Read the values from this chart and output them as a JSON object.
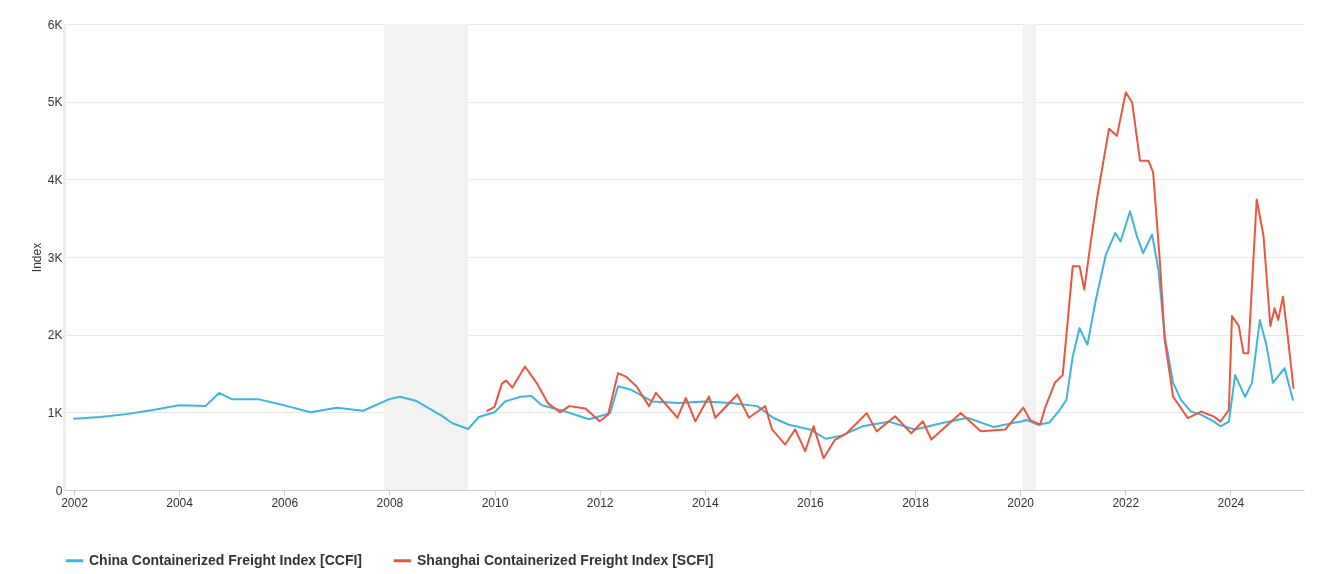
{
  "chart_data": {
    "type": "line",
    "ylabel": "Index",
    "xlim": [
      2001.81,
      2025.4
    ],
    "xticks": [
      2002,
      2004,
      2006,
      2008,
      2010,
      2012,
      2014,
      2016,
      2018,
      2020,
      2022,
      2024
    ],
    "ylim": [
      0,
      6000
    ],
    "yticks": [
      0,
      {
        "value": 1000,
        "label": "1K"
      },
      {
        "value": 2000,
        "label": "2K"
      },
      {
        "value": 3000,
        "label": "3K"
      },
      {
        "value": 4000,
        "label": "4K"
      },
      {
        "value": 5000,
        "label": "5K"
      },
      {
        "value": 6000,
        "label": "6K"
      }
    ],
    "grid": "y",
    "legend": "bottom",
    "line_style": "solid",
    "bands": [
      {
        "axis": "x",
        "from": 2007.9,
        "to": 2009.5,
        "color": "#f2f2f2"
      },
      {
        "axis": "x",
        "from": 2020.05,
        "to": 2020.3,
        "color": "#f2f2f2"
      }
    ],
    "series": [
      {
        "name": "China Containerized Freight Index [CCFI]",
        "color": "#41b4de",
        "x": [
          2002.0,
          2002.5,
          2003.0,
          2003.5,
          2004.0,
          2004.5,
          2004.76,
          2005.0,
          2005.5,
          2006.0,
          2006.5,
          2007.0,
          2007.5,
          2008.0,
          2008.2,
          2008.5,
          2009.0,
          2009.2,
          2009.5,
          2009.7,
          2010.0,
          2010.2,
          2010.5,
          2010.7,
          2010.9,
          2011.3,
          2011.8,
          2012.0,
          2012.2,
          2012.35,
          2012.6,
          2013.0,
          2013.5,
          2014.0,
          2014.5,
          2015.0,
          2015.3,
          2015.6,
          2016.0,
          2016.3,
          2016.6,
          2017.0,
          2017.5,
          2018.0,
          2018.5,
          2019.0,
          2019.5,
          2020.0,
          2020.13,
          2020.34,
          2020.56,
          2020.75,
          2020.88,
          2021.0,
          2021.13,
          2021.28,
          2021.44,
          2021.63,
          2021.81,
          2021.91,
          2022.09,
          2022.22,
          2022.34,
          2022.51,
          2022.63,
          2022.75,
          2022.91,
          2023.06,
          2023.25,
          2023.44,
          2023.69,
          2023.81,
          2023.97,
          2024.09,
          2024.28,
          2024.41,
          2024.56,
          2024.69,
          2024.81,
          2025.03,
          2025.19
        ],
        "values": [
          917,
          940,
          977,
          1030,
          1090,
          1080,
          1250,
          1170,
          1170,
          1090,
          1000,
          1060,
          1020,
          1170,
          1200,
          1150,
          955,
          860,
          785,
          940,
          1000,
          1140,
          1200,
          1210,
          1090,
          1020,
          910,
          950,
          990,
          1335,
          1290,
          1140,
          1120,
          1140,
          1120,
          1080,
          930,
          840,
          780,
          660,
          700,
          820,
          880,
          780,
          860,
          930,
          810,
          880,
          900,
          840,
          870,
          1030,
          1160,
          1720,
          2085,
          1870,
          2450,
          3030,
          3310,
          3200,
          3590,
          3270,
          3050,
          3290,
          2840,
          1980,
          1380,
          1160,
          1010,
          970,
          880,
          820,
          880,
          1480,
          1200,
          1380,
          2190,
          1850,
          1380,
          1570,
          1160
        ]
      },
      {
        "name": "Shanghai Containerized Freight Index [SCFI]",
        "color": "#e9573f",
        "x": [
          2009.86,
          2010.0,
          2010.14,
          2010.22,
          2010.34,
          2010.58,
          2010.81,
          2011.02,
          2011.25,
          2011.42,
          2011.73,
          2012.0,
          2012.16,
          2012.35,
          2012.5,
          2012.7,
          2012.94,
          2013.07,
          2013.48,
          2013.64,
          2013.82,
          2014.08,
          2014.2,
          2014.62,
          2014.84,
          2015.15,
          2015.28,
          2015.53,
          2015.72,
          2015.91,
          2016.07,
          2016.26,
          2016.48,
          2016.7,
          2017.08,
          2017.27,
          2017.62,
          2017.93,
          2018.15,
          2018.31,
          2018.87,
          2019.25,
          2019.72,
          2020.06,
          2020.19,
          2020.38,
          2020.47,
          2020.66,
          2020.81,
          2021.0,
          2021.13,
          2021.22,
          2021.34,
          2021.47,
          2021.69,
          2021.84,
          2022.01,
          2022.13,
          2022.28,
          2022.44,
          2022.53,
          2022.66,
          2022.75,
          2022.91,
          2023.19,
          2023.44,
          2023.69,
          2023.81,
          2023.97,
          2024.03,
          2024.16,
          2024.25,
          2024.34,
          2024.5,
          2024.63,
          2024.76,
          2024.84,
          2024.91,
          2025.0,
          2025.09,
          2025.2
        ],
        "values": [
          1020,
          1070,
          1370,
          1410,
          1320,
          1590,
          1370,
          1115,
          1000,
          1080,
          1050,
          885,
          970,
          1505,
          1460,
          1335,
          1080,
          1250,
          930,
          1185,
          885,
          1205,
          930,
          1230,
          930,
          1080,
          780,
          585,
          780,
          500,
          820,
          410,
          650,
          730,
          990,
          755,
          950,
          730,
          885,
          650,
          990,
          755,
          780,
          1060,
          900,
          840,
          1050,
          1380,
          1480,
          2880,
          2880,
          2580,
          3180,
          3785,
          4650,
          4560,
          5120,
          4990,
          4240,
          4240,
          4090,
          2920,
          1935,
          1200,
          925,
          1010,
          945,
          880,
          1030,
          2240,
          2110,
          1760,
          1760,
          3740,
          3270,
          2110,
          2340,
          2190,
          2490,
          1980,
          1310
        ]
      }
    ]
  }
}
